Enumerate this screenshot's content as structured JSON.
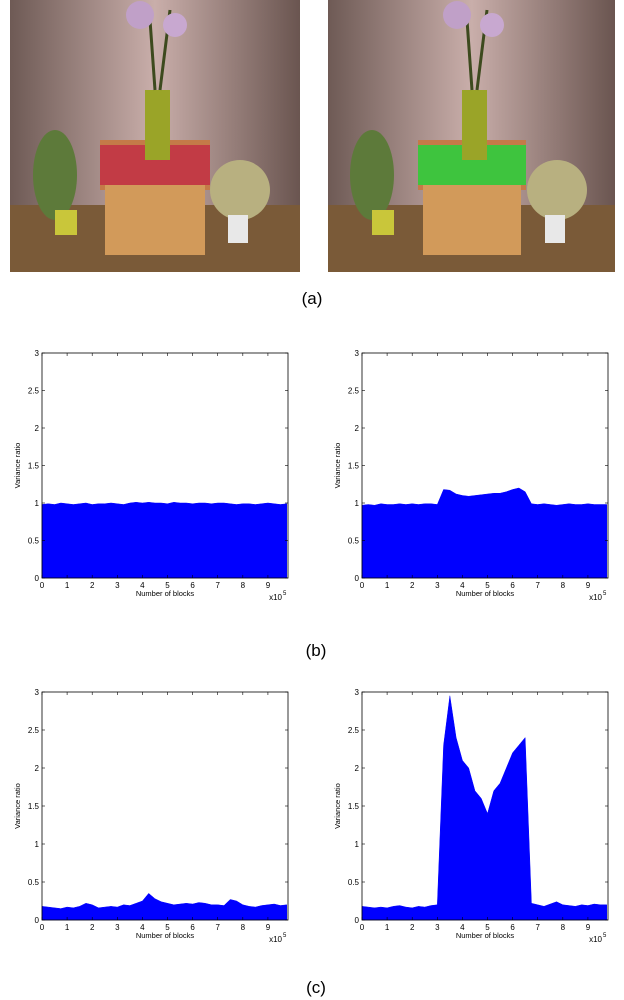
{
  "captions": {
    "a": "(a)",
    "b": "(b)",
    "c": "(c)"
  },
  "chart_data": [
    {
      "type": "area",
      "xlabel": "Number of blocks",
      "ylabel": "Variance ratio",
      "x_scale_label": "x10",
      "x_scale_exponent": "5",
      "color": "#0000ff",
      "xlim": [
        0,
        9.8
      ],
      "xticks": [
        0,
        1,
        2,
        3,
        4,
        5,
        6,
        7,
        8,
        9
      ],
      "ylim": [
        0,
        3
      ],
      "yticks": [
        0,
        0.5,
        1,
        1.5,
        2,
        2.5,
        3
      ],
      "x": [
        0,
        0.25,
        0.5,
        0.75,
        1,
        1.25,
        1.5,
        1.75,
        2,
        2.25,
        2.5,
        2.75,
        3,
        3.25,
        3.5,
        3.75,
        4,
        4.25,
        4.5,
        4.75,
        5,
        5.25,
        5.5,
        5.75,
        6,
        6.25,
        6.5,
        6.75,
        7,
        7.25,
        7.5,
        7.75,
        8,
        8.25,
        8.5,
        8.75,
        9,
        9.25,
        9.5,
        9.75
      ],
      "values": [
        0.98,
        0.99,
        0.98,
        1.0,
        0.99,
        0.98,
        0.99,
        1.0,
        0.98,
        0.99,
        0.99,
        1.0,
        0.99,
        0.98,
        1.0,
        1.01,
        1.0,
        1.01,
        1.0,
        1.0,
        0.99,
        1.01,
        1.0,
        1.0,
        0.99,
        1.0,
        1.0,
        0.99,
        1.0,
        1.0,
        0.99,
        0.98,
        0.99,
        0.99,
        0.98,
        0.99,
        1.0,
        0.99,
        0.98,
        0.99
      ]
    },
    {
      "type": "area",
      "xlabel": "Number of blocks",
      "ylabel": "Variance ratio",
      "x_scale_label": "x10",
      "x_scale_exponent": "5",
      "color": "#0000ff",
      "xlim": [
        0,
        9.8
      ],
      "xticks": [
        0,
        1,
        2,
        3,
        4,
        5,
        6,
        7,
        8,
        9
      ],
      "ylim": [
        0,
        3
      ],
      "yticks": [
        0,
        0.5,
        1,
        1.5,
        2,
        2.5,
        3
      ],
      "x": [
        0,
        0.25,
        0.5,
        0.75,
        1,
        1.25,
        1.5,
        1.75,
        2,
        2.25,
        2.5,
        2.75,
        3,
        3.25,
        3.5,
        3.75,
        4,
        4.25,
        4.5,
        4.75,
        5,
        5.25,
        5.5,
        5.75,
        6,
        6.25,
        6.5,
        6.75,
        7,
        7.25,
        7.5,
        7.75,
        8,
        8.25,
        8.5,
        8.75,
        9,
        9.25,
        9.5,
        9.75
      ],
      "values": [
        0.97,
        0.98,
        0.97,
        0.99,
        0.98,
        0.98,
        0.99,
        0.98,
        0.99,
        0.98,
        0.99,
        0.99,
        0.98,
        1.18,
        1.17,
        1.12,
        1.1,
        1.09,
        1.1,
        1.11,
        1.12,
        1.13,
        1.13,
        1.15,
        1.18,
        1.2,
        1.15,
        0.99,
        0.98,
        0.99,
        0.98,
        0.97,
        0.98,
        0.99,
        0.98,
        0.98,
        0.99,
        0.98,
        0.98,
        0.98
      ]
    },
    {
      "type": "area",
      "xlabel": "Number of blocks",
      "ylabel": "Variance ratio",
      "x_scale_label": "x10",
      "x_scale_exponent": "5",
      "color": "#0000ff",
      "xlim": [
        0,
        9.8
      ],
      "xticks": [
        0,
        1,
        2,
        3,
        4,
        5,
        6,
        7,
        8,
        9
      ],
      "ylim": [
        0,
        3
      ],
      "yticks": [
        0,
        0.5,
        1,
        1.5,
        2,
        2.5,
        3
      ],
      "x": [
        0,
        0.25,
        0.5,
        0.75,
        1,
        1.25,
        1.5,
        1.75,
        2,
        2.25,
        2.5,
        2.75,
        3,
        3.25,
        3.5,
        3.75,
        4,
        4.25,
        4.5,
        4.75,
        5,
        5.25,
        5.5,
        5.75,
        6,
        6.25,
        6.5,
        6.75,
        7,
        7.25,
        7.5,
        7.75,
        8,
        8.25,
        8.5,
        8.75,
        9,
        9.25,
        9.5,
        9.75
      ],
      "values": [
        0.18,
        0.17,
        0.16,
        0.15,
        0.17,
        0.16,
        0.18,
        0.22,
        0.2,
        0.16,
        0.17,
        0.18,
        0.17,
        0.2,
        0.19,
        0.22,
        0.25,
        0.35,
        0.28,
        0.24,
        0.22,
        0.2,
        0.21,
        0.22,
        0.21,
        0.23,
        0.22,
        0.2,
        0.2,
        0.19,
        0.27,
        0.25,
        0.2,
        0.18,
        0.17,
        0.19,
        0.2,
        0.21,
        0.19,
        0.2
      ]
    },
    {
      "type": "area",
      "xlabel": "Number of blocks",
      "ylabel": "Variance ratio",
      "x_scale_label": "x10",
      "x_scale_exponent": "5",
      "color": "#0000ff",
      "xlim": [
        0,
        9.8
      ],
      "xticks": [
        0,
        1,
        2,
        3,
        4,
        5,
        6,
        7,
        8,
        9
      ],
      "ylim": [
        0,
        3
      ],
      "yticks": [
        0,
        0.5,
        1,
        1.5,
        2,
        2.5,
        3
      ],
      "x": [
        0,
        0.25,
        0.5,
        0.75,
        1,
        1.25,
        1.5,
        1.75,
        2,
        2.25,
        2.5,
        2.75,
        3,
        3.25,
        3.5,
        3.75,
        4,
        4.25,
        4.5,
        4.75,
        5,
        5.25,
        5.5,
        5.75,
        6,
        6.25,
        6.5,
        6.75,
        7,
        7.25,
        7.5,
        7.75,
        8,
        8.25,
        8.5,
        8.75,
        9,
        9.25,
        9.5,
        9.75
      ],
      "values": [
        0.18,
        0.17,
        0.16,
        0.17,
        0.16,
        0.18,
        0.19,
        0.17,
        0.16,
        0.18,
        0.17,
        0.19,
        0.2,
        2.3,
        2.95,
        2.4,
        2.1,
        2.0,
        1.7,
        1.6,
        1.4,
        1.7,
        1.8,
        2.0,
        2.2,
        2.3,
        2.4,
        0.22,
        0.2,
        0.18,
        0.21,
        0.24,
        0.2,
        0.19,
        0.18,
        0.2,
        0.19,
        0.21,
        0.2,
        0.2
      ]
    }
  ]
}
